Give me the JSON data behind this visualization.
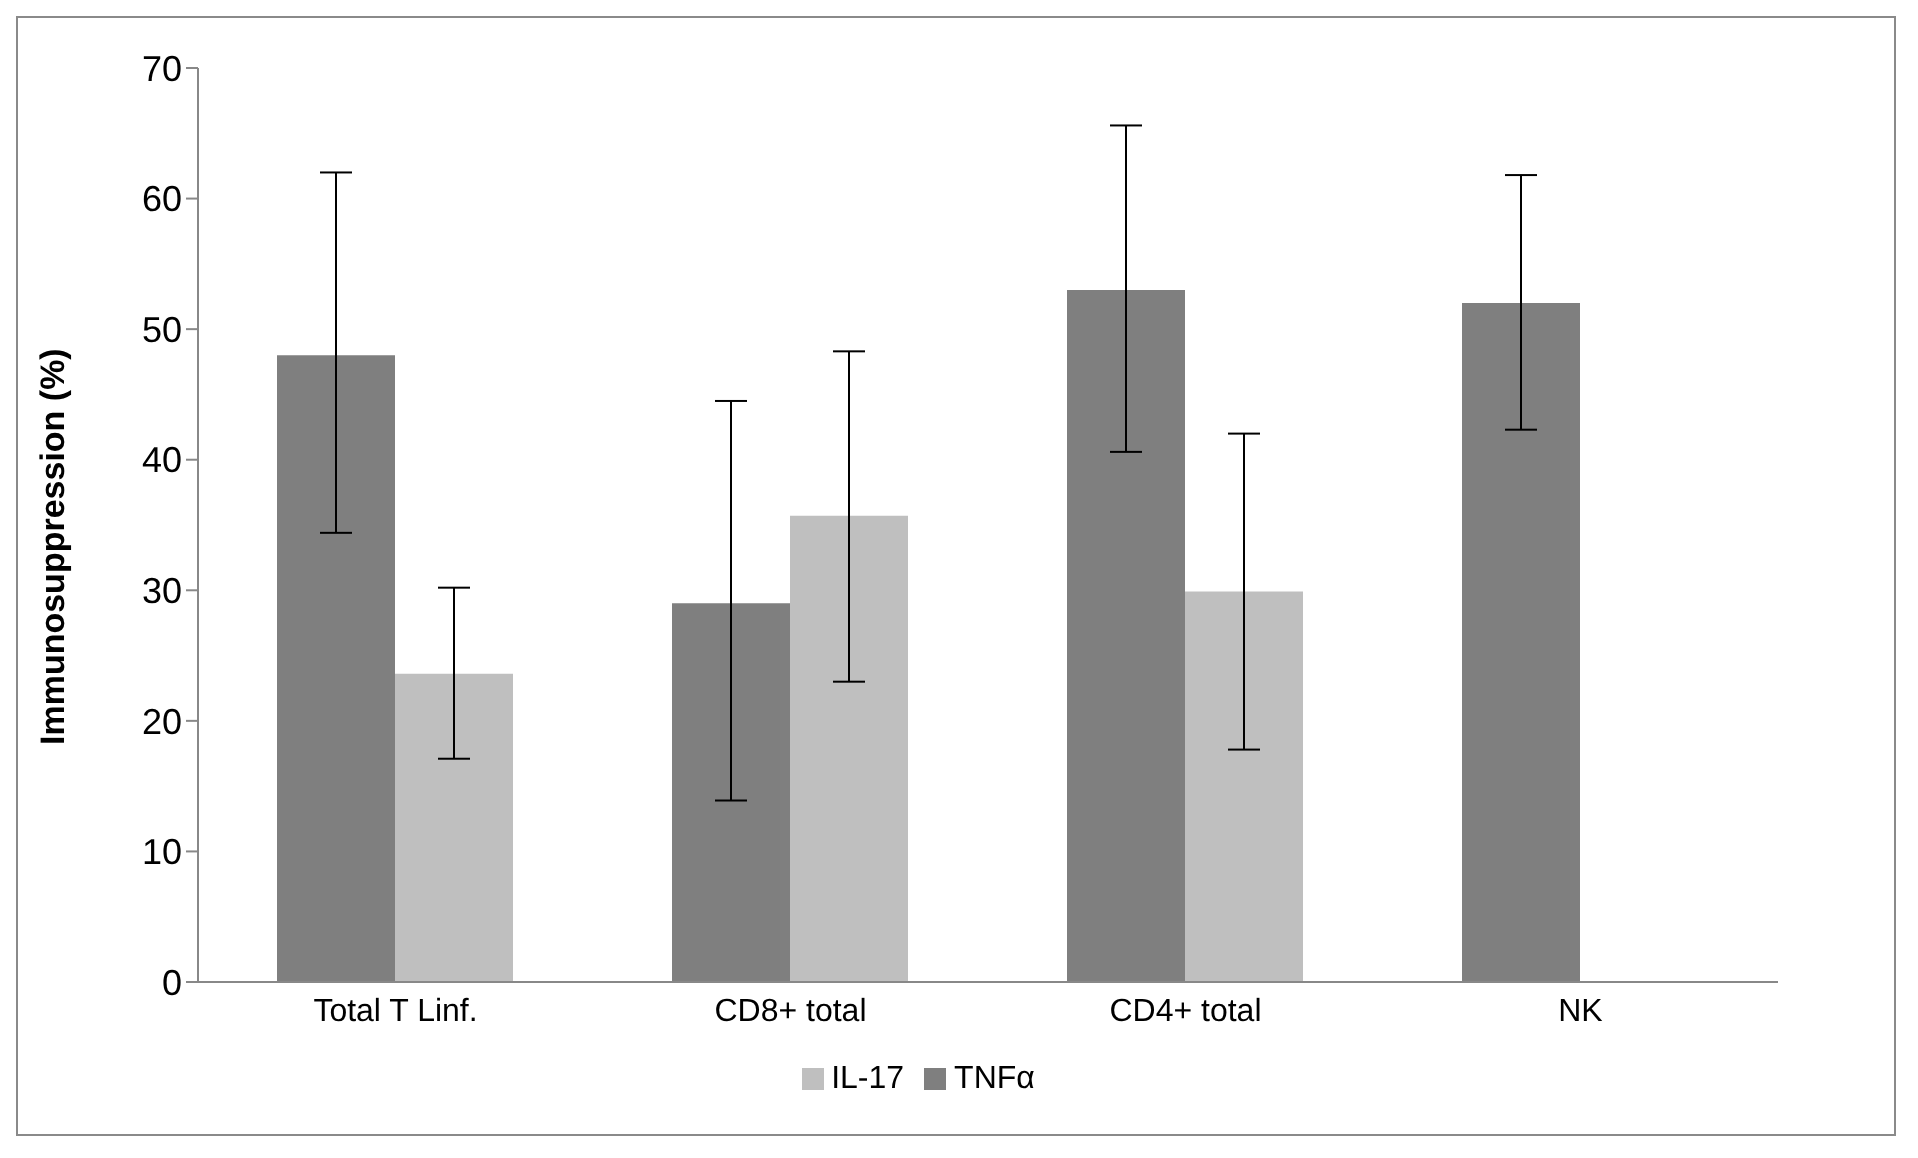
{
  "chart_data": {
    "type": "bar",
    "ylabel": "Immunosuppression (%)",
    "categories": [
      "Total T Linf.",
      "CD8+ total",
      "CD4+ total",
      "NK"
    ],
    "series": [
      {
        "name": "TNFα",
        "color": "#7f7f7f",
        "values": [
          48,
          29,
          53,
          52
        ],
        "errors": [
          [
            34.4,
            62
          ],
          [
            13.9,
            44.5
          ],
          [
            40.6,
            65.6
          ],
          [
            42.3,
            61.8
          ]
        ]
      },
      {
        "name": "IL-17",
        "color": "#bfbfbf",
        "values": [
          23.6,
          35.7,
          29.9,
          null
        ],
        "errors": [
          [
            17.1,
            30.2
          ],
          [
            23,
            48.3
          ],
          [
            17.8,
            42
          ],
          null
        ]
      }
    ],
    "ylim": [
      0,
      70
    ],
    "yticks": [
      0,
      10,
      20,
      30,
      40,
      50,
      60,
      70
    ],
    "grid": false,
    "legend": "bottom"
  }
}
